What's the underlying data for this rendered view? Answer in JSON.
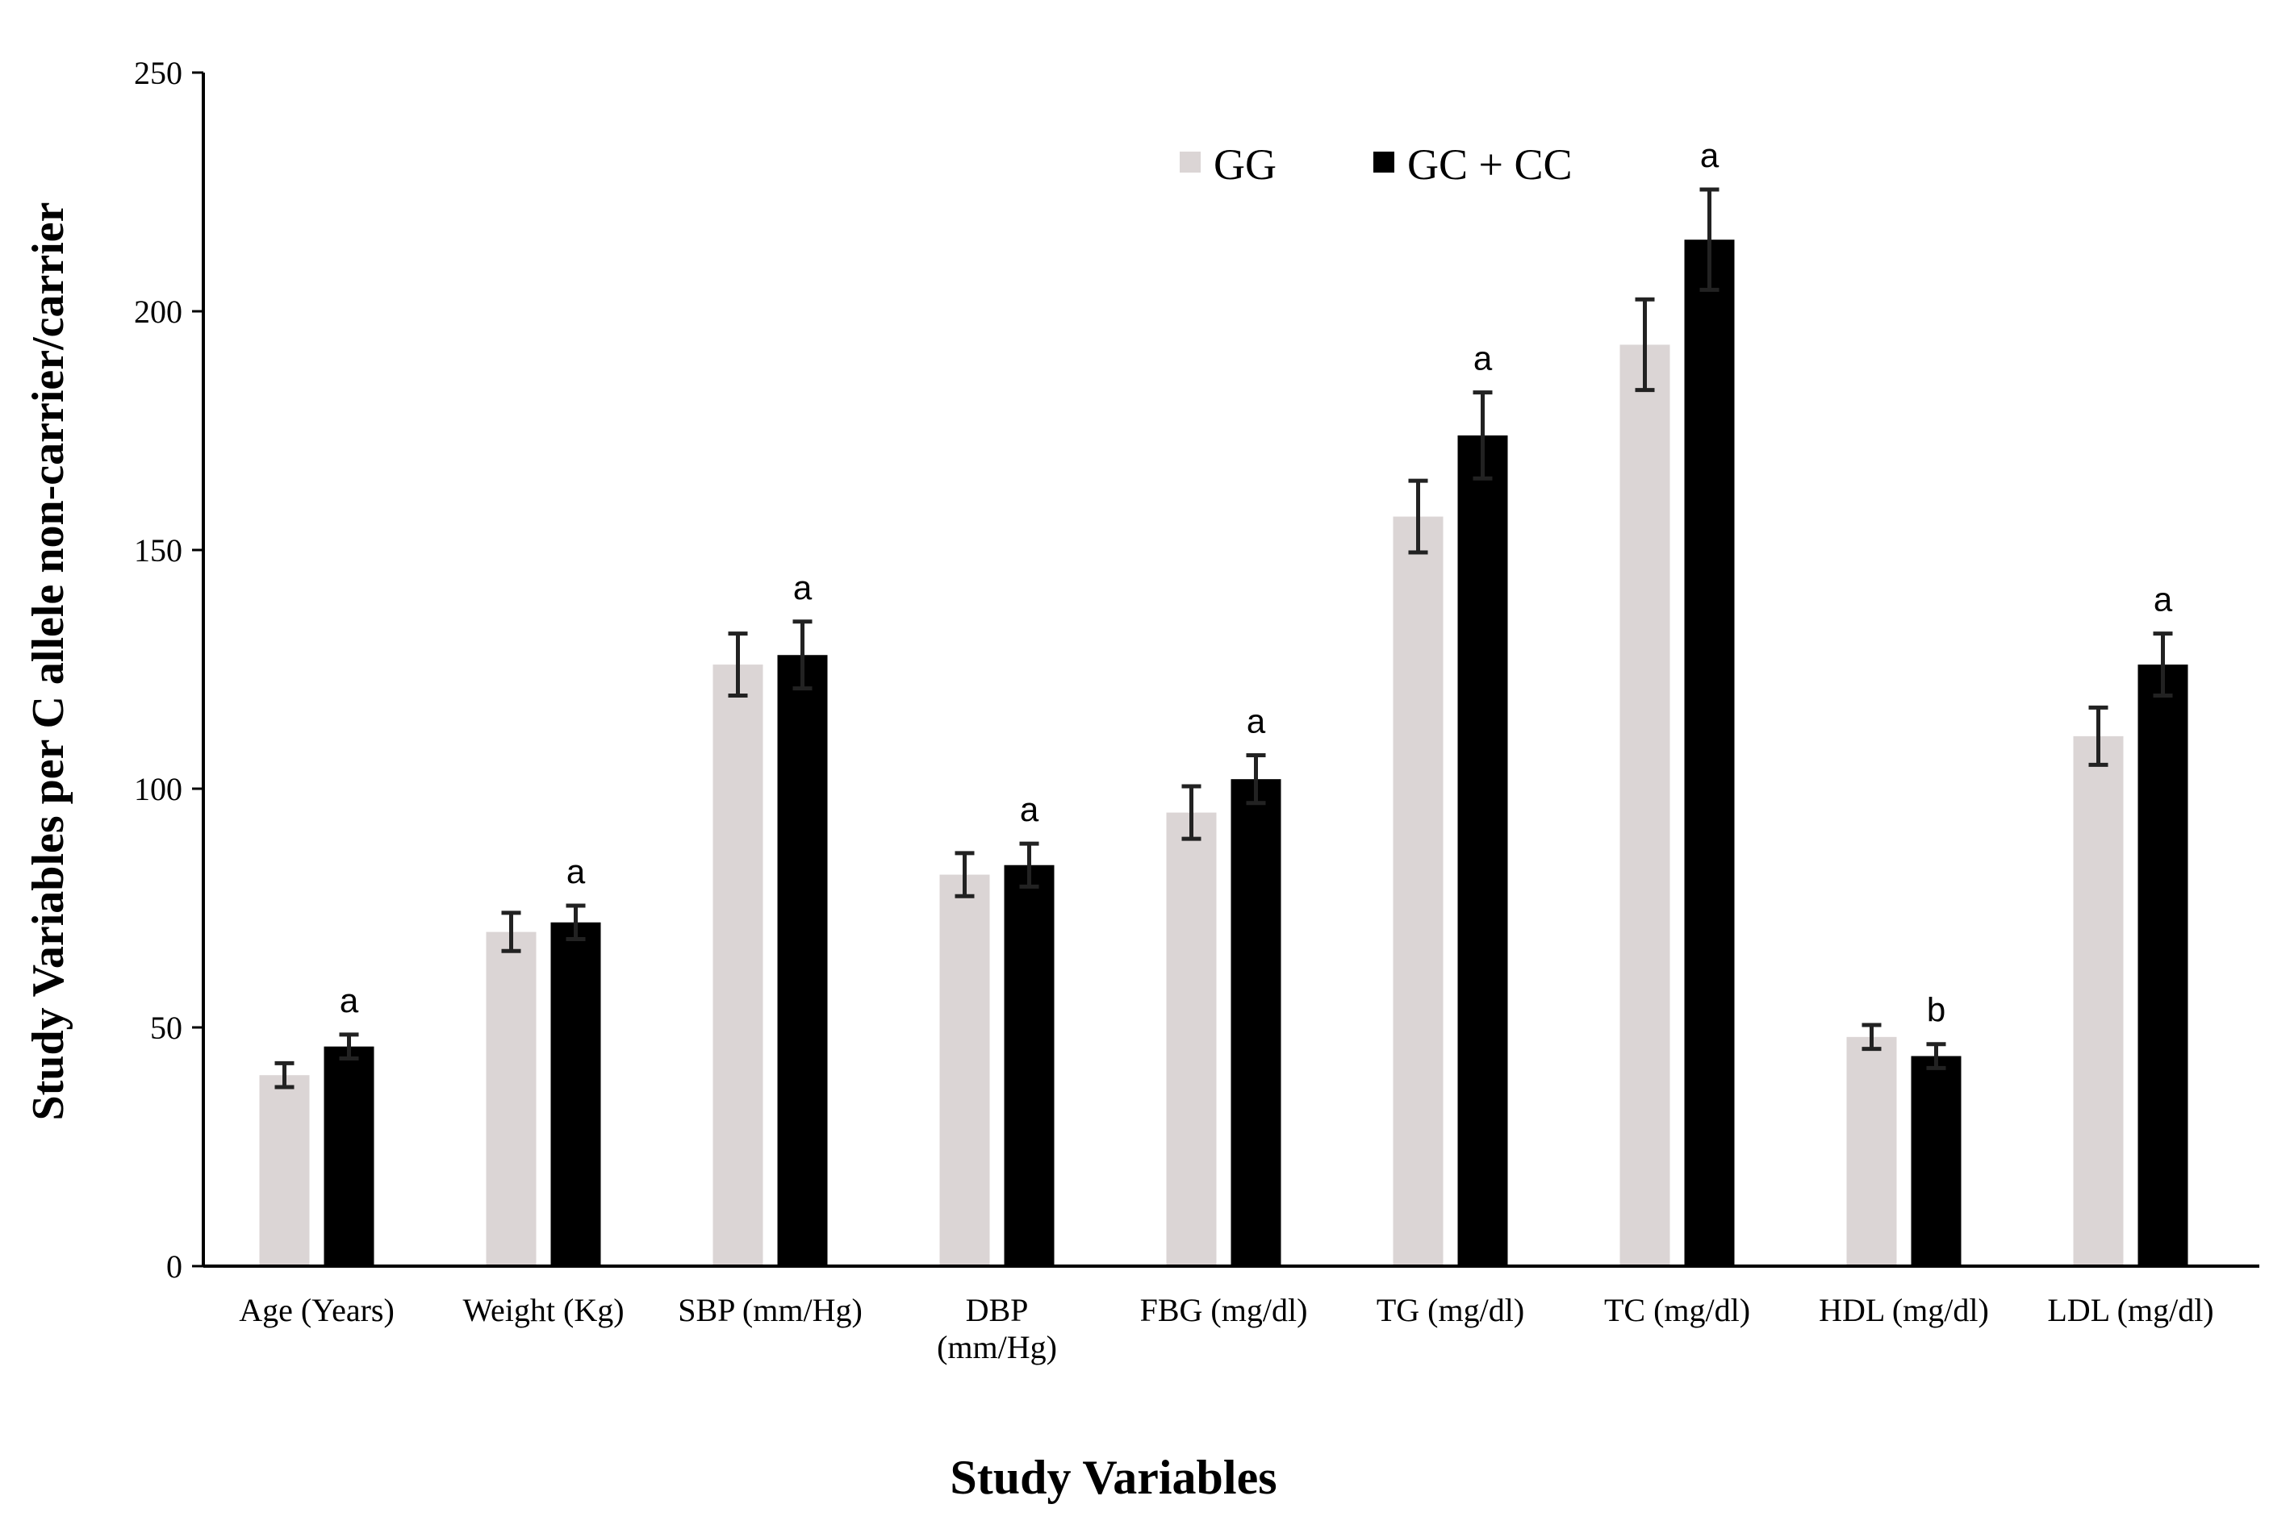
{
  "chart_data": {
    "type": "bar",
    "title": "",
    "xlabel": "Study Variables",
    "ylabel": "Study Variables per C allele non-carrier/carrier",
    "ylim": [
      0,
      250
    ],
    "yticks": [
      0,
      50,
      100,
      150,
      200,
      250
    ],
    "grid": false,
    "legend_position": "top-center",
    "categories": [
      [
        "Age (Years)"
      ],
      [
        "Weight (Kg)"
      ],
      [
        "SBP (mm/Hg)"
      ],
      [
        "DBP",
        "(mm/Hg)"
      ],
      [
        "FBG (mg/dl)"
      ],
      [
        "TG (mg/dl)"
      ],
      [
        "TC (mg/dl)"
      ],
      [
        "HDL (mg/dl)"
      ],
      [
        "LDL (mg/dl)"
      ]
    ],
    "series": [
      {
        "name": "GG",
        "color": "#dbd5d5",
        "values": [
          40,
          70,
          126,
          82,
          95,
          157,
          193,
          48,
          111
        ],
        "errors": [
          2.5,
          4,
          6.5,
          4.5,
          5.5,
          7.5,
          9.5,
          2.5,
          6
        ]
      },
      {
        "name": "GC + CC",
        "color": "#000000",
        "values": [
          46,
          72,
          128,
          84,
          102,
          174,
          215,
          44,
          126
        ],
        "errors": [
          2.5,
          3.5,
          7,
          4.5,
          5,
          9,
          10.5,
          2.5,
          6.5
        ]
      }
    ],
    "annotations": [
      "a",
      "a",
      "a",
      "a",
      "a",
      "a",
      "a",
      "b",
      "a"
    ]
  }
}
